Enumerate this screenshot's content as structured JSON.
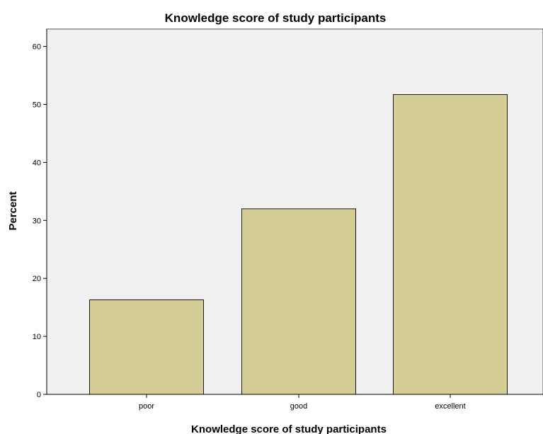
{
  "chart_data": {
    "type": "bar",
    "title": "Knowledge score of study participants",
    "xlabel": "Knowledge score of study participants",
    "ylabel": "Percent",
    "categories": [
      "poor",
      "good",
      "excellent"
    ],
    "values": [
      16.3,
      32.0,
      51.7
    ],
    "ylim": [
      0,
      63
    ],
    "yticks": [
      0,
      10,
      20,
      30,
      40,
      50,
      60
    ],
    "grid": false,
    "legend": "none",
    "colors": {
      "bar_fill": "#d4cd96",
      "bar_stroke": "#1a1a1a",
      "plot_background": "#f0f0f0",
      "axis": "#000000"
    }
  }
}
